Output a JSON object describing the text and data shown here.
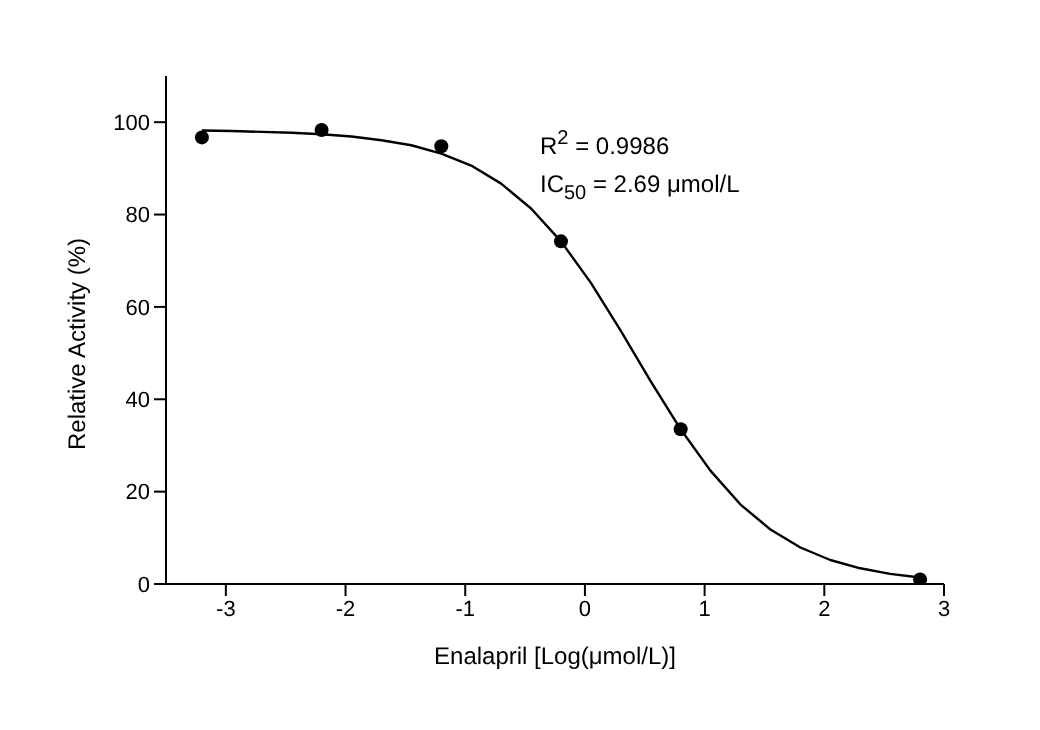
{
  "chart_data": {
    "type": "scatter",
    "xlabel": "Enalapril [Log(μmol/L)]",
    "ylabel": "Relative Activity (%)",
    "xlim": [
      -3.5,
      3
    ],
    "xticks": [
      -3,
      -2,
      -1,
      0,
      1,
      2,
      3
    ],
    "ylim": [
      0,
      110
    ],
    "yticks": [
      0,
      20,
      40,
      60,
      80,
      100
    ],
    "grid": false,
    "legend": false,
    "annotations": [
      "R$^{2}$ = 0.9986",
      "IC$_{50}$ = 2.69 μmol/L"
    ],
    "series": [
      {
        "type": "scatter",
        "color": "#000000",
        "marker": "circle",
        "x": [
          -3.2,
          -2.2,
          -1.2,
          -0.2,
          0.8,
          2.8
        ],
        "values": [
          96.7,
          98.3,
          94.8,
          74.2,
          33.5,
          1
        ]
      },
      {
        "type": "line",
        "color": "#000000",
        "marker": "none",
        "line_style": "solid",
        "x": [
          -3.2,
          -2.95,
          -2.7,
          -2.45,
          -2.2,
          -1.95,
          -1.7,
          -1.45,
          -1.2,
          -0.95,
          -0.7,
          -0.45,
          -0.2,
          0.05,
          0.3,
          0.55,
          0.8,
          1.05,
          1.3,
          1.55,
          1.8,
          2.05,
          2.3,
          2.55,
          2.8
        ],
        "values": [
          98.2,
          98.1,
          97.9,
          97.7,
          97.4,
          96.9,
          96.1,
          95.0,
          93.2,
          90.6,
          86.7,
          81.3,
          74.2,
          65.2,
          54.8,
          43.9,
          33.5,
          24.5,
          17.2,
          11.8,
          7.9,
          5.2,
          3.4,
          2.2,
          1.4
        ]
      }
    ]
  }
}
